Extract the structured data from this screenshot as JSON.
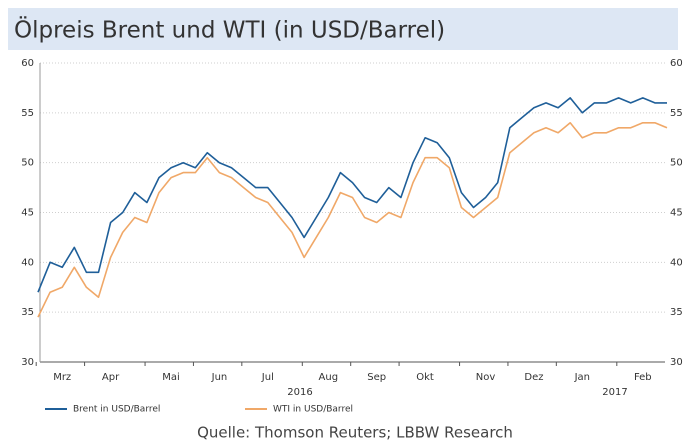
{
  "chart_data": {
    "type": "line",
    "title": "Ölpreis Brent und WTI (in USD/Barrel)",
    "source": "Quelle: Thomson Reuters; LBBW Research",
    "categories": [
      null,
      null,
      "Mrz",
      null,
      null,
      null,
      "Apr",
      null,
      null,
      null,
      null,
      "Mai",
      null,
      null,
      null,
      "Jun",
      null,
      null,
      null,
      "Jul",
      null,
      null,
      null,
      null,
      "Aug",
      null,
      null,
      null,
      "Sep",
      null,
      null,
      null,
      "Okt",
      null,
      null,
      null,
      null,
      "Nov",
      null,
      null,
      null,
      "Dez",
      null,
      null,
      null,
      "Jan",
      null,
      null,
      null,
      null,
      "Feb",
      null,
      null
    ],
    "year_labels": [
      "2016",
      "2017"
    ],
    "series": [
      {
        "name": "Brent in USD/Barrel",
        "color": "#1f5f99",
        "values": [
          37,
          40,
          39.5,
          41.5,
          39,
          39,
          44,
          45,
          47,
          46,
          48.5,
          49.5,
          50,
          49.5,
          51,
          50,
          49.5,
          48.5,
          47.5,
          47.5,
          46,
          44.5,
          42.5,
          44.5,
          46.5,
          49,
          48,
          46.5,
          46,
          47.5,
          46.5,
          50,
          52.5,
          52,
          50.5,
          47,
          45.5,
          46.5,
          48,
          53.5,
          54.5,
          55.5,
          56,
          55.5,
          56.5,
          55,
          56,
          56,
          56.5,
          56,
          56.5,
          56,
          56
        ]
      },
      {
        "name": "WTI in USD/Barrel",
        "color": "#f0a868",
        "values": [
          34.5,
          37,
          37.5,
          39.5,
          37.5,
          36.5,
          40.5,
          43,
          44.5,
          44,
          47,
          48.5,
          49,
          49,
          50.5,
          49,
          48.5,
          47.5,
          46.5,
          46,
          44.5,
          43,
          40.5,
          42.5,
          44.5,
          47,
          46.5,
          44.5,
          44,
          45,
          44.5,
          48,
          50.5,
          50.5,
          49.5,
          45.5,
          44.5,
          45.5,
          46.5,
          51,
          52,
          53,
          53.5,
          53,
          54,
          52.5,
          53,
          53,
          53.5,
          53.5,
          54,
          54,
          53.5
        ]
      }
    ],
    "ylim": [
      30,
      60
    ],
    "yticks": [
      30,
      35,
      40,
      45,
      50,
      55,
      60
    ],
    "y2lim": [
      30,
      60
    ],
    "y2ticks": [
      30,
      35,
      40,
      45,
      50,
      55,
      60
    ],
    "grid": true,
    "legend": "bottom-left"
  }
}
